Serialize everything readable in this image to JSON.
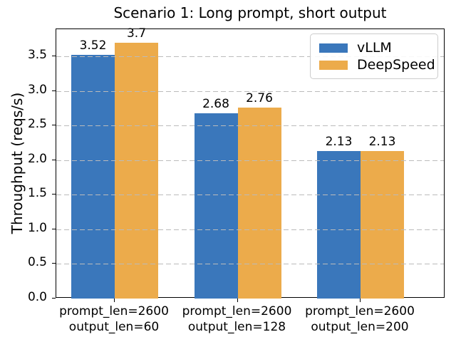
{
  "chart_data": {
    "type": "bar",
    "title": "Scenario 1: Long prompt, short output",
    "xlabel": "",
    "ylabel": "Throughput (reqs/s)",
    "categories": [
      "prompt_len=2600\noutput_len=60",
      "prompt_len=2600\noutput_len=128",
      "prompt_len=2600\noutput_len=200"
    ],
    "series": [
      {
        "name": "vLLM",
        "color": "#3a77bb",
        "values": [
          3.52,
          2.68,
          2.13
        ],
        "labels": [
          "3.52",
          "2.68",
          "2.13"
        ]
      },
      {
        "name": "DeepSpeed",
        "color": "#ecab4b",
        "values": [
          3.7,
          2.76,
          2.13
        ],
        "labels": [
          "3.7",
          "2.76",
          "2.13"
        ]
      }
    ],
    "yticks": [
      0.0,
      0.5,
      1.0,
      1.5,
      2.0,
      2.5,
      3.0,
      3.5
    ],
    "ytick_labels": [
      "0.0",
      "0.5",
      "1.0",
      "1.5",
      "2.0",
      "2.5",
      "3.0",
      "3.5"
    ],
    "ylim": [
      0,
      3.89
    ],
    "grid": {
      "axis": "y",
      "style": "dashed",
      "color": "#bbbbbb",
      "drawn_above_bars": true
    },
    "legend": {
      "position": "upper right",
      "entries": [
        "vLLM",
        "DeepSpeed"
      ]
    },
    "colors": {
      "vllm_blue": "#3a77bb",
      "deepspeed_orange": "#ecab4b",
      "spine": "#000000",
      "legend_border": "#cccccc"
    }
  }
}
